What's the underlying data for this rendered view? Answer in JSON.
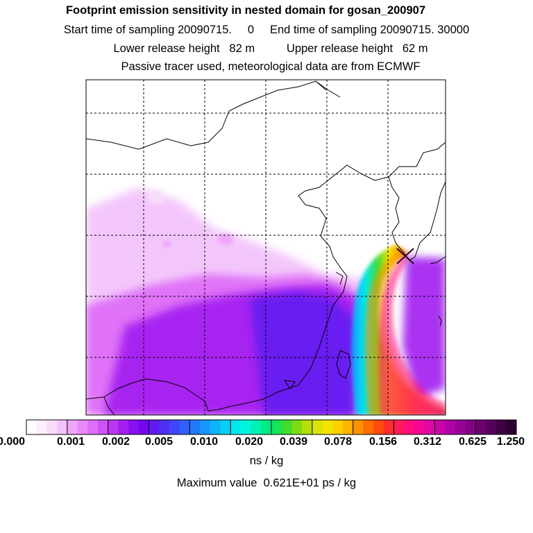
{
  "header": {
    "title": "Footprint emission sensitivity in nested domain for gosan_200907",
    "sampling_line": "Start time of sampling 20090715.     0     End time of sampling 20090715. 30000",
    "release_line": "Lower release height   82 m          Upper release height   62 m",
    "tracer_line": "Passive tracer used, meteorological data are from ECMWF"
  },
  "colorbar": {
    "labels": [
      "0.000",
      "0.001",
      "0.002",
      "0.005",
      "0.010",
      "0.020",
      "0.039",
      "0.078",
      "0.156",
      "0.312",
      "0.625",
      "1.250"
    ],
    "colors": [
      "#ffffff",
      "#fdeefe",
      "#f9dcfc",
      "#f3c4fb",
      "#eea6fa",
      "#e88af9",
      "#de6ef7",
      "#cf52f5",
      "#bb38f2",
      "#a21ff0",
      "#8a0fef",
      "#7308ef",
      "#5f1af0",
      "#4e30f4",
      "#3f45f8",
      "#3260fb",
      "#2279fd",
      "#1696fd",
      "#0cb4fb",
      "#05d0f6",
      "#01e8ee",
      "#00f5dc",
      "#00f2b4",
      "#00ea86",
      "#14e45a",
      "#3fdc2e",
      "#7bdc13",
      "#b3e009",
      "#d9e406",
      "#f3e302",
      "#fdd000",
      "#ffb300",
      "#ff9200",
      "#ff6e00",
      "#ff4c10",
      "#ff2c2c",
      "#ff1c58",
      "#ff0d7c",
      "#f40896",
      "#e006a6",
      "#c905aa",
      "#b004a8",
      "#980396",
      "#820283",
      "#6b0170",
      "#55005c",
      "#400046",
      "#2c0030"
    ],
    "units": "ns / kg"
  },
  "max_value": "Maximum value  0.621E+01 ps / kg"
}
